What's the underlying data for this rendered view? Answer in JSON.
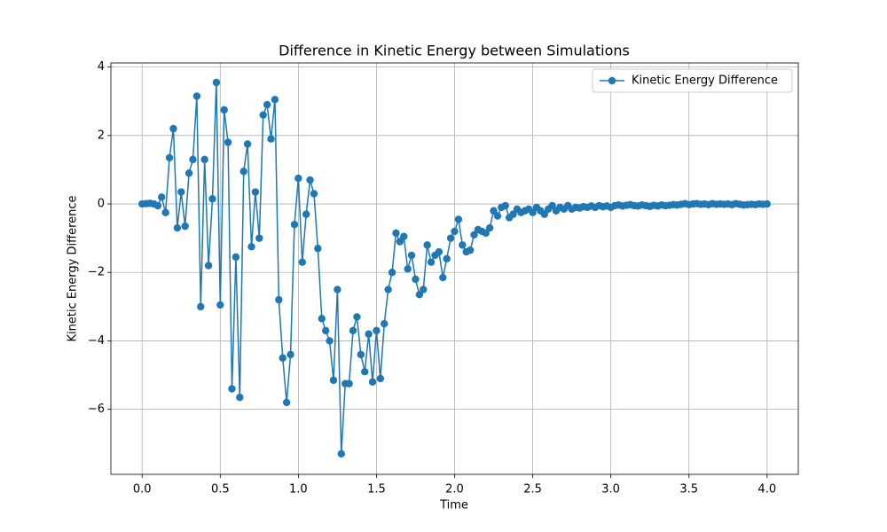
{
  "chart_data": {
    "type": "line",
    "title": "Difference in Kinetic Energy between Simulations",
    "x_label": "Time",
    "y_label": "Kinetic Energy Difference",
    "xlim": [
      -0.2,
      4.2
    ],
    "ylim": [
      -7.9,
      4.12
    ],
    "xticks": [
      {
        "value": 0,
        "label": "0.0"
      },
      {
        "value": 0.5,
        "label": "0.5"
      },
      {
        "value": 1,
        "label": "1.0"
      },
      {
        "value": 1.5,
        "label": "1.5"
      },
      {
        "value": 2,
        "label": "2.0"
      },
      {
        "value": 2.5,
        "label": "2.5"
      },
      {
        "value": 3,
        "label": "3.0"
      },
      {
        "value": 3.5,
        "label": "3.5"
      },
      {
        "value": 4,
        "label": "4.0"
      }
    ],
    "yticks": [
      {
        "value": -6,
        "label": "−6"
      },
      {
        "value": -4,
        "label": "−4"
      },
      {
        "value": -2,
        "label": "−2"
      },
      0,
      2,
      4
    ],
    "grid": true,
    "legend": "upper right",
    "x": [
      0,
      0.025,
      0.05,
      0.075,
      0.1,
      0.125,
      0.15,
      0.175,
      0.2,
      0.225,
      0.25,
      0.275,
      0.3,
      0.325,
      0.35,
      0.375,
      0.4,
      0.425,
      0.45,
      0.475,
      0.5,
      0.525,
      0.55,
      0.575,
      0.6,
      0.625,
      0.65,
      0.675,
      0.7,
      0.725,
      0.75,
      0.775,
      0.8,
      0.825,
      0.85,
      0.875,
      0.9,
      0.925,
      0.95,
      0.975,
      1,
      1.025,
      1.05,
      1.075,
      1.1,
      1.125,
      1.15,
      1.175,
      1.2,
      1.225,
      1.25,
      1.275,
      1.3,
      1.325,
      1.35,
      1.375,
      1.4,
      1.425,
      1.45,
      1.475,
      1.5,
      1.525,
      1.55,
      1.575,
      1.6,
      1.625,
      1.65,
      1.675,
      1.7,
      1.725,
      1.75,
      1.775,
      1.8,
      1.825,
      1.85,
      1.875,
      1.9,
      1.925,
      1.95,
      1.975,
      2,
      2.025,
      2.05,
      2.075,
      2.1,
      2.125,
      2.15,
      2.175,
      2.2,
      2.225,
      2.25,
      2.275,
      2.3,
      2.325,
      2.35,
      2.375,
      2.4,
      2.425,
      2.45,
      2.475,
      2.5,
      2.525,
      2.55,
      2.575,
      2.6,
      2.625,
      2.65,
      2.675,
      2.7,
      2.725,
      2.75,
      2.775,
      2.8,
      2.825,
      2.85,
      2.875,
      2.9,
      2.925,
      2.95,
      2.975,
      3,
      3.025,
      3.05,
      3.075,
      3.1,
      3.125,
      3.15,
      3.175,
      3.2,
      3.225,
      3.25,
      3.275,
      3.3,
      3.325,
      3.35,
      3.375,
      3.4,
      3.425,
      3.45,
      3.475,
      3.5,
      3.525,
      3.55,
      3.575,
      3.6,
      3.625,
      3.65,
      3.675,
      3.7,
      3.725,
      3.75,
      3.775,
      3.8,
      3.825,
      3.85,
      3.875,
      3.9,
      3.925,
      3.95,
      3.975,
      4
    ],
    "series": [
      {
        "name": "Kinetic Energy Difference",
        "color": "#1f77b4",
        "values": [
          0,
          0.01,
          0.02,
          0,
          -0.05,
          0.2,
          -0.25,
          1.35,
          2.2,
          -0.7,
          0.35,
          -0.65,
          0.9,
          1.3,
          3.15,
          -3.0,
          1.3,
          -1.8,
          0.15,
          3.55,
          -2.95,
          2.75,
          1.8,
          -5.4,
          -1.55,
          -5.65,
          0.95,
          1.75,
          -1.25,
          0.35,
          -1.0,
          2.6,
          2.9,
          1.9,
          3.05,
          -2.8,
          -4.5,
          -5.8,
          -4.4,
          -0.6,
          0.75,
          -1.7,
          -0.3,
          0.7,
          0.3,
          -1.3,
          -3.35,
          -3.7,
          -4.0,
          -5.15,
          -2.5,
          -7.3,
          -5.25,
          -5.25,
          -3.7,
          -3.3,
          -4.4,
          -4.9,
          -3.8,
          -5.2,
          -3.7,
          -5.1,
          -3.5,
          -2.5,
          -2.0,
          -0.85,
          -1.1,
          -0.95,
          -1.9,
          -1.5,
          -2.2,
          -2.65,
          -2.5,
          -1.2,
          -1.7,
          -1.5,
          -1.4,
          -2.15,
          -1.6,
          -1.0,
          -0.8,
          -0.45,
          -1.2,
          -1.4,
          -1.35,
          -0.9,
          -0.75,
          -0.8,
          -0.85,
          -0.7,
          -0.2,
          -0.35,
          -0.1,
          -0.05,
          -0.4,
          -0.3,
          -0.15,
          -0.25,
          -0.2,
          -0.15,
          -0.25,
          -0.1,
          -0.2,
          -0.3,
          -0.15,
          -0.05,
          -0.2,
          -0.1,
          -0.15,
          -0.05,
          -0.15,
          -0.1,
          -0.12,
          -0.08,
          -0.1,
          -0.06,
          -0.1,
          -0.05,
          -0.08,
          -0.06,
          -0.1,
          -0.05,
          -0.03,
          -0.06,
          -0.04,
          -0.02,
          -0.05,
          -0.06,
          -0.03,
          -0.05,
          -0.07,
          -0.04,
          -0.06,
          -0.03,
          -0.05,
          -0.04,
          -0.02,
          -0.03,
          -0.01,
          0.01,
          -0.02,
          0,
          0.01,
          -0.01,
          0,
          -0.02,
          0.01,
          -0.01,
          0,
          -0.01,
          0,
          -0.02,
          0.01,
          -0.01,
          -0.03,
          -0.02,
          -0.01,
          -0.02,
          0,
          -0.01,
          0
        ]
      }
    ]
  }
}
